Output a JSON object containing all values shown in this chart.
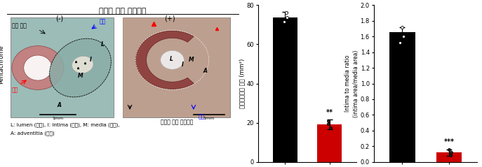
{
  "title": "랩핑형 혈관 그래프트",
  "chart1_ylabel": "신생혈관내막 면적 (mm²)",
  "chart1_xlabel": "랩핑형 혈관 그래프트",
  "chart1_bars": [
    73.5,
    19.0
  ],
  "chart1_errors": [
    3.0,
    2.5
  ],
  "chart1_colors": [
    "#000000",
    "#cc0000"
  ],
  "chart1_xticks": [
    "(-)",
    "(+)"
  ],
  "chart1_ylim": [
    0,
    80
  ],
  "chart1_yticks": [
    0,
    20,
    40,
    60,
    80
  ],
  "chart1_sig": "**",
  "chart2_ylabel_line1": "Intima to media ratio",
  "chart2_ylabel_line2": "(intima area/media area)",
  "chart2_xlabel": "랩핑형 혈관 그래프트",
  "chart2_bars": [
    1.65,
    0.12
  ],
  "chart2_errors": [
    0.07,
    0.04
  ],
  "chart2_colors": [
    "#000000",
    "#cc0000"
  ],
  "chart2_xticks": [
    "(-)",
    "(+)"
  ],
  "chart2_ylim": [
    0.0,
    2.0
  ],
  "chart2_yticks": [
    0.0,
    0.2,
    0.4,
    0.6,
    0.8,
    1.0,
    1.2,
    1.4,
    1.6,
    1.8,
    2.0
  ],
  "chart2_sig": "***",
  "bg_color": "#ffffff",
  "bar_width": 0.55,
  "capsize": 3,
  "errorbar_color": "#000000",
  "left_panel_bg": "#f0ede8",
  "legend_line1": "L: lumen (내강), I: intima (내막), M: media (중막),",
  "legend_line2": "A: adventitia (외막)",
  "label_Pentachrome": "Pentachrome",
  "label_minus": "(-)",
  "label_plus": "(+)",
  "label_vein_ko": "정맥",
  "label_artery_ko": "동맥",
  "label_junction": "문합 부위",
  "label_wrapping": "랙핑형 혁관 그래프트"
}
